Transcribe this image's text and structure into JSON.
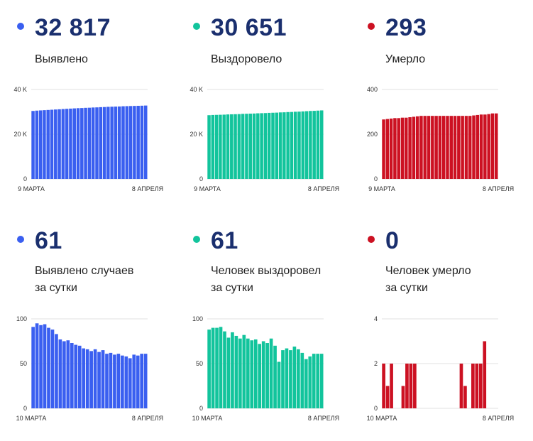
{
  "panels": [
    {
      "value": "32 817",
      "label": [
        "Выявлено",
        ""
      ],
      "color": "#3a5ff0",
      "chart_data": {
        "type": "bar",
        "x_start_label": "9 МАРТА",
        "x_end_label": "8 АПРЕЛЯ",
        "yticks": [
          0,
          20000,
          40000
        ],
        "ytick_labels": [
          "0",
          "20 K",
          "40 K"
        ],
        "ylim": [
          0,
          40000
        ],
        "values": [
          30400,
          30550,
          30650,
          30750,
          30850,
          30950,
          31050,
          31150,
          31250,
          31350,
          31450,
          31550,
          31650,
          31700,
          31800,
          31850,
          31950,
          32000,
          32100,
          32150,
          32250,
          32300,
          32350,
          32400,
          32500,
          32550,
          32600,
          32650,
          32700,
          32750,
          32817
        ]
      }
    },
    {
      "value": "30 651",
      "label": [
        "Выздоровело",
        ""
      ],
      "color": "#12c49c",
      "chart_data": {
        "type": "bar",
        "x_start_label": "9 МАРТА",
        "x_end_label": "8 АПРЕЛЯ",
        "yticks": [
          0,
          20000,
          40000
        ],
        "ytick_labels": [
          "0",
          "20 K",
          "40 K"
        ],
        "ylim": [
          0,
          40000
        ],
        "values": [
          28500,
          28600,
          28650,
          28700,
          28750,
          28850,
          28900,
          28950,
          29000,
          29100,
          29150,
          29200,
          29250,
          29350,
          29400,
          29450,
          29550,
          29600,
          29650,
          29750,
          29800,
          29900,
          29950,
          30050,
          30100,
          30200,
          30300,
          30400,
          30450,
          30550,
          30651
        ]
      }
    },
    {
      "value": "293",
      "label": [
        "Умерло",
        ""
      ],
      "color": "#cc1122",
      "chart_data": {
        "type": "bar",
        "x_start_label": "9 МАРТА",
        "x_end_label": "8 АПРЕЛЯ",
        "yticks": [
          0,
          200,
          400
        ],
        "ytick_labels": [
          "0",
          "200",
          "400"
        ],
        "ylim": [
          0,
          400
        ],
        "values": [
          266,
          268,
          270,
          272,
          272,
          274,
          274,
          276,
          278,
          280,
          282,
          282,
          282,
          282,
          282,
          282,
          282,
          282,
          282,
          282,
          282,
          282,
          282,
          282,
          284,
          286,
          288,
          288,
          290,
          293,
          293
        ]
      }
    },
    {
      "value": "61",
      "label": [
        "Выявлено случаев",
        "за сутки"
      ],
      "color": "#3a5ff0",
      "chart_data": {
        "type": "bar",
        "x_start_label": "10 МАРТА",
        "x_end_label": "8 АПРЕЛЯ",
        "yticks": [
          0,
          50,
          100
        ],
        "ytick_labels": [
          "0",
          "50",
          "100"
        ],
        "ylim": [
          0,
          100
        ],
        "values": [
          91,
          95,
          93,
          94,
          90,
          88,
          83,
          77,
          75,
          76,
          73,
          71,
          70,
          67,
          66,
          64,
          66,
          63,
          65,
          61,
          62,
          60,
          61,
          59,
          58,
          56,
          60,
          59,
          61,
          61
        ]
      }
    },
    {
      "value": "61",
      "label": [
        "Человек выздоровел",
        "за сутки"
      ],
      "color": "#12c49c",
      "chart_data": {
        "type": "bar",
        "x_start_label": "10 МАРТА",
        "x_end_label": "8 АПРЕЛЯ",
        "yticks": [
          0,
          50,
          100
        ],
        "ytick_labels": [
          "0",
          "50",
          "100"
        ],
        "ylim": [
          0,
          100
        ],
        "values": [
          88,
          90,
          90,
          91,
          86,
          79,
          85,
          81,
          78,
          82,
          78,
          76,
          77,
          72,
          75,
          73,
          78,
          70,
          52,
          65,
          67,
          65,
          69,
          66,
          62,
          55,
          58,
          61,
          61,
          61
        ]
      }
    },
    {
      "value": "0",
      "label": [
        "Человек умерло",
        "за сутки"
      ],
      "color": "#cc1122",
      "chart_data": {
        "type": "bar",
        "x_start_label": "10 МАРТА",
        "x_end_label": "8 АПРЕЛЯ",
        "yticks": [
          0,
          2,
          4
        ],
        "ytick_labels": [
          "0",
          "2",
          "4"
        ],
        "ylim": [
          0,
          4
        ],
        "values": [
          2,
          1,
          2,
          0,
          0,
          1,
          2,
          2,
          2,
          0,
          0,
          0,
          0,
          0,
          0,
          0,
          0,
          0,
          0,
          0,
          2,
          1,
          0,
          2,
          2,
          2,
          3,
          0,
          0,
          0
        ]
      }
    }
  ]
}
